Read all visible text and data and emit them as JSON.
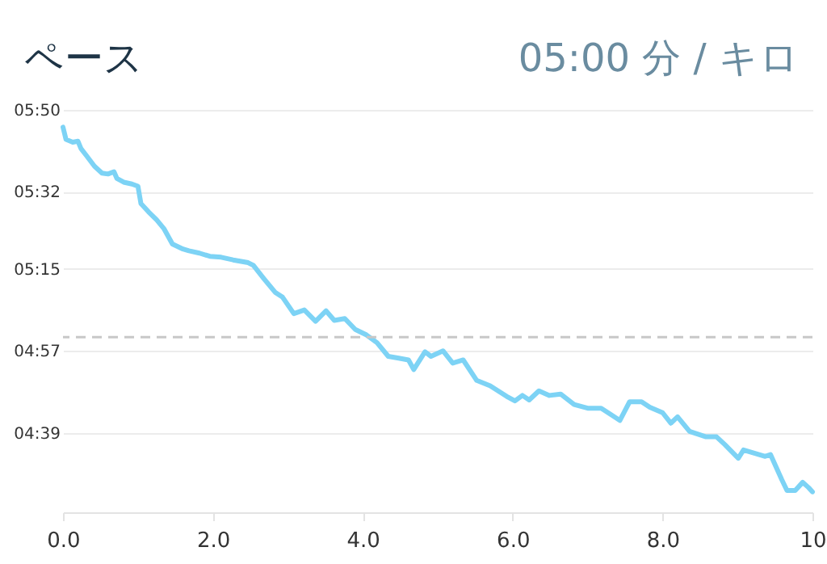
{
  "chart_data": {
    "type": "line",
    "title": "ペース",
    "annotations": [
      "05:00 分 / キロ"
    ],
    "x": [
      0.0,
      0.04,
      0.13,
      0.2,
      0.24,
      0.31,
      0.42,
      0.52,
      0.6,
      0.68,
      0.72,
      0.81,
      0.92,
      1.0,
      1.04,
      1.14,
      1.25,
      1.35,
      1.46,
      1.6,
      1.68,
      1.82,
      1.96,
      2.11,
      2.27,
      2.47,
      2.54,
      2.68,
      2.83,
      2.93,
      3.08,
      3.22,
      3.37,
      3.51,
      3.62,
      3.76,
      3.9,
      4.05,
      4.19,
      4.34,
      4.48,
      4.61,
      4.68,
      4.83,
      4.91,
      5.07,
      5.2,
      5.34,
      5.52,
      5.7,
      5.92,
      6.03,
      6.13,
      6.22,
      6.35,
      6.49,
      6.64,
      6.82,
      7.0,
      7.18,
      7.43,
      7.56,
      7.72,
      7.83,
      8.0,
      8.11,
      8.2,
      8.36,
      8.58,
      8.72,
      8.83,
      9.01,
      9.08,
      9.37,
      9.44,
      9.59,
      9.66,
      9.77,
      9.87,
      9.95,
      10.0
    ],
    "series": [
      {
        "color": "#7dd3f5",
        "values": [
          346.2,
          343.5,
          342.9,
          343.1,
          341.5,
          340.0,
          337.6,
          336.1,
          335.9,
          336.4,
          334.9,
          334.1,
          333.7,
          333.2,
          329.4,
          327.6,
          325.8,
          323.8,
          320.5,
          319.4,
          319.0,
          318.5,
          317.8,
          317.6,
          317.0,
          316.4,
          315.8,
          312.9,
          309.9,
          308.8,
          305.2,
          306.0,
          303.5,
          305.8,
          303.7,
          304.1,
          301.7,
          300.5,
          298.8,
          295.8,
          295.4,
          295.0,
          292.9,
          296.8,
          295.8,
          297.0,
          294.3,
          295.0,
          290.5,
          289.3,
          287.0,
          286.0,
          287.2,
          286.2,
          288.2,
          287.2,
          287.5,
          285.2,
          284.4,
          284.4,
          281.7,
          285.8,
          285.8,
          284.6,
          283.4,
          281.1,
          282.5,
          279.3,
          278.1,
          278.1,
          276.4,
          273.4,
          275.2,
          273.8,
          274.2,
          268.7,
          266.3,
          266.3,
          268.1,
          266.9,
          266.0
        ]
      }
    ],
    "xlim": [
      0,
      10
    ],
    "xticks": [
      {
        "value": 0,
        "label": "0.0"
      },
      {
        "value": 2,
        "label": "2.0"
      },
      {
        "value": 4,
        "label": "4.0"
      },
      {
        "value": 6,
        "label": "6.0"
      },
      {
        "value": 8,
        "label": "8.0"
      },
      10
    ],
    "ylim": [
      261.5,
      350
    ],
    "yticks": [
      {
        "value": 350,
        "label": "05:50"
      },
      {
        "value": 332,
        "label": "05:32"
      },
      {
        "value": 315,
        "label": "05:15"
      },
      {
        "value": 297,
        "label": "04:57"
      },
      {
        "value": 279,
        "label": "04:39"
      }
    ],
    "ref_lines": [
      {
        "axis": "y",
        "value": 300,
        "color": "#c8c8c8",
        "line_style": "dashed"
      }
    ],
    "grid": "y"
  }
}
